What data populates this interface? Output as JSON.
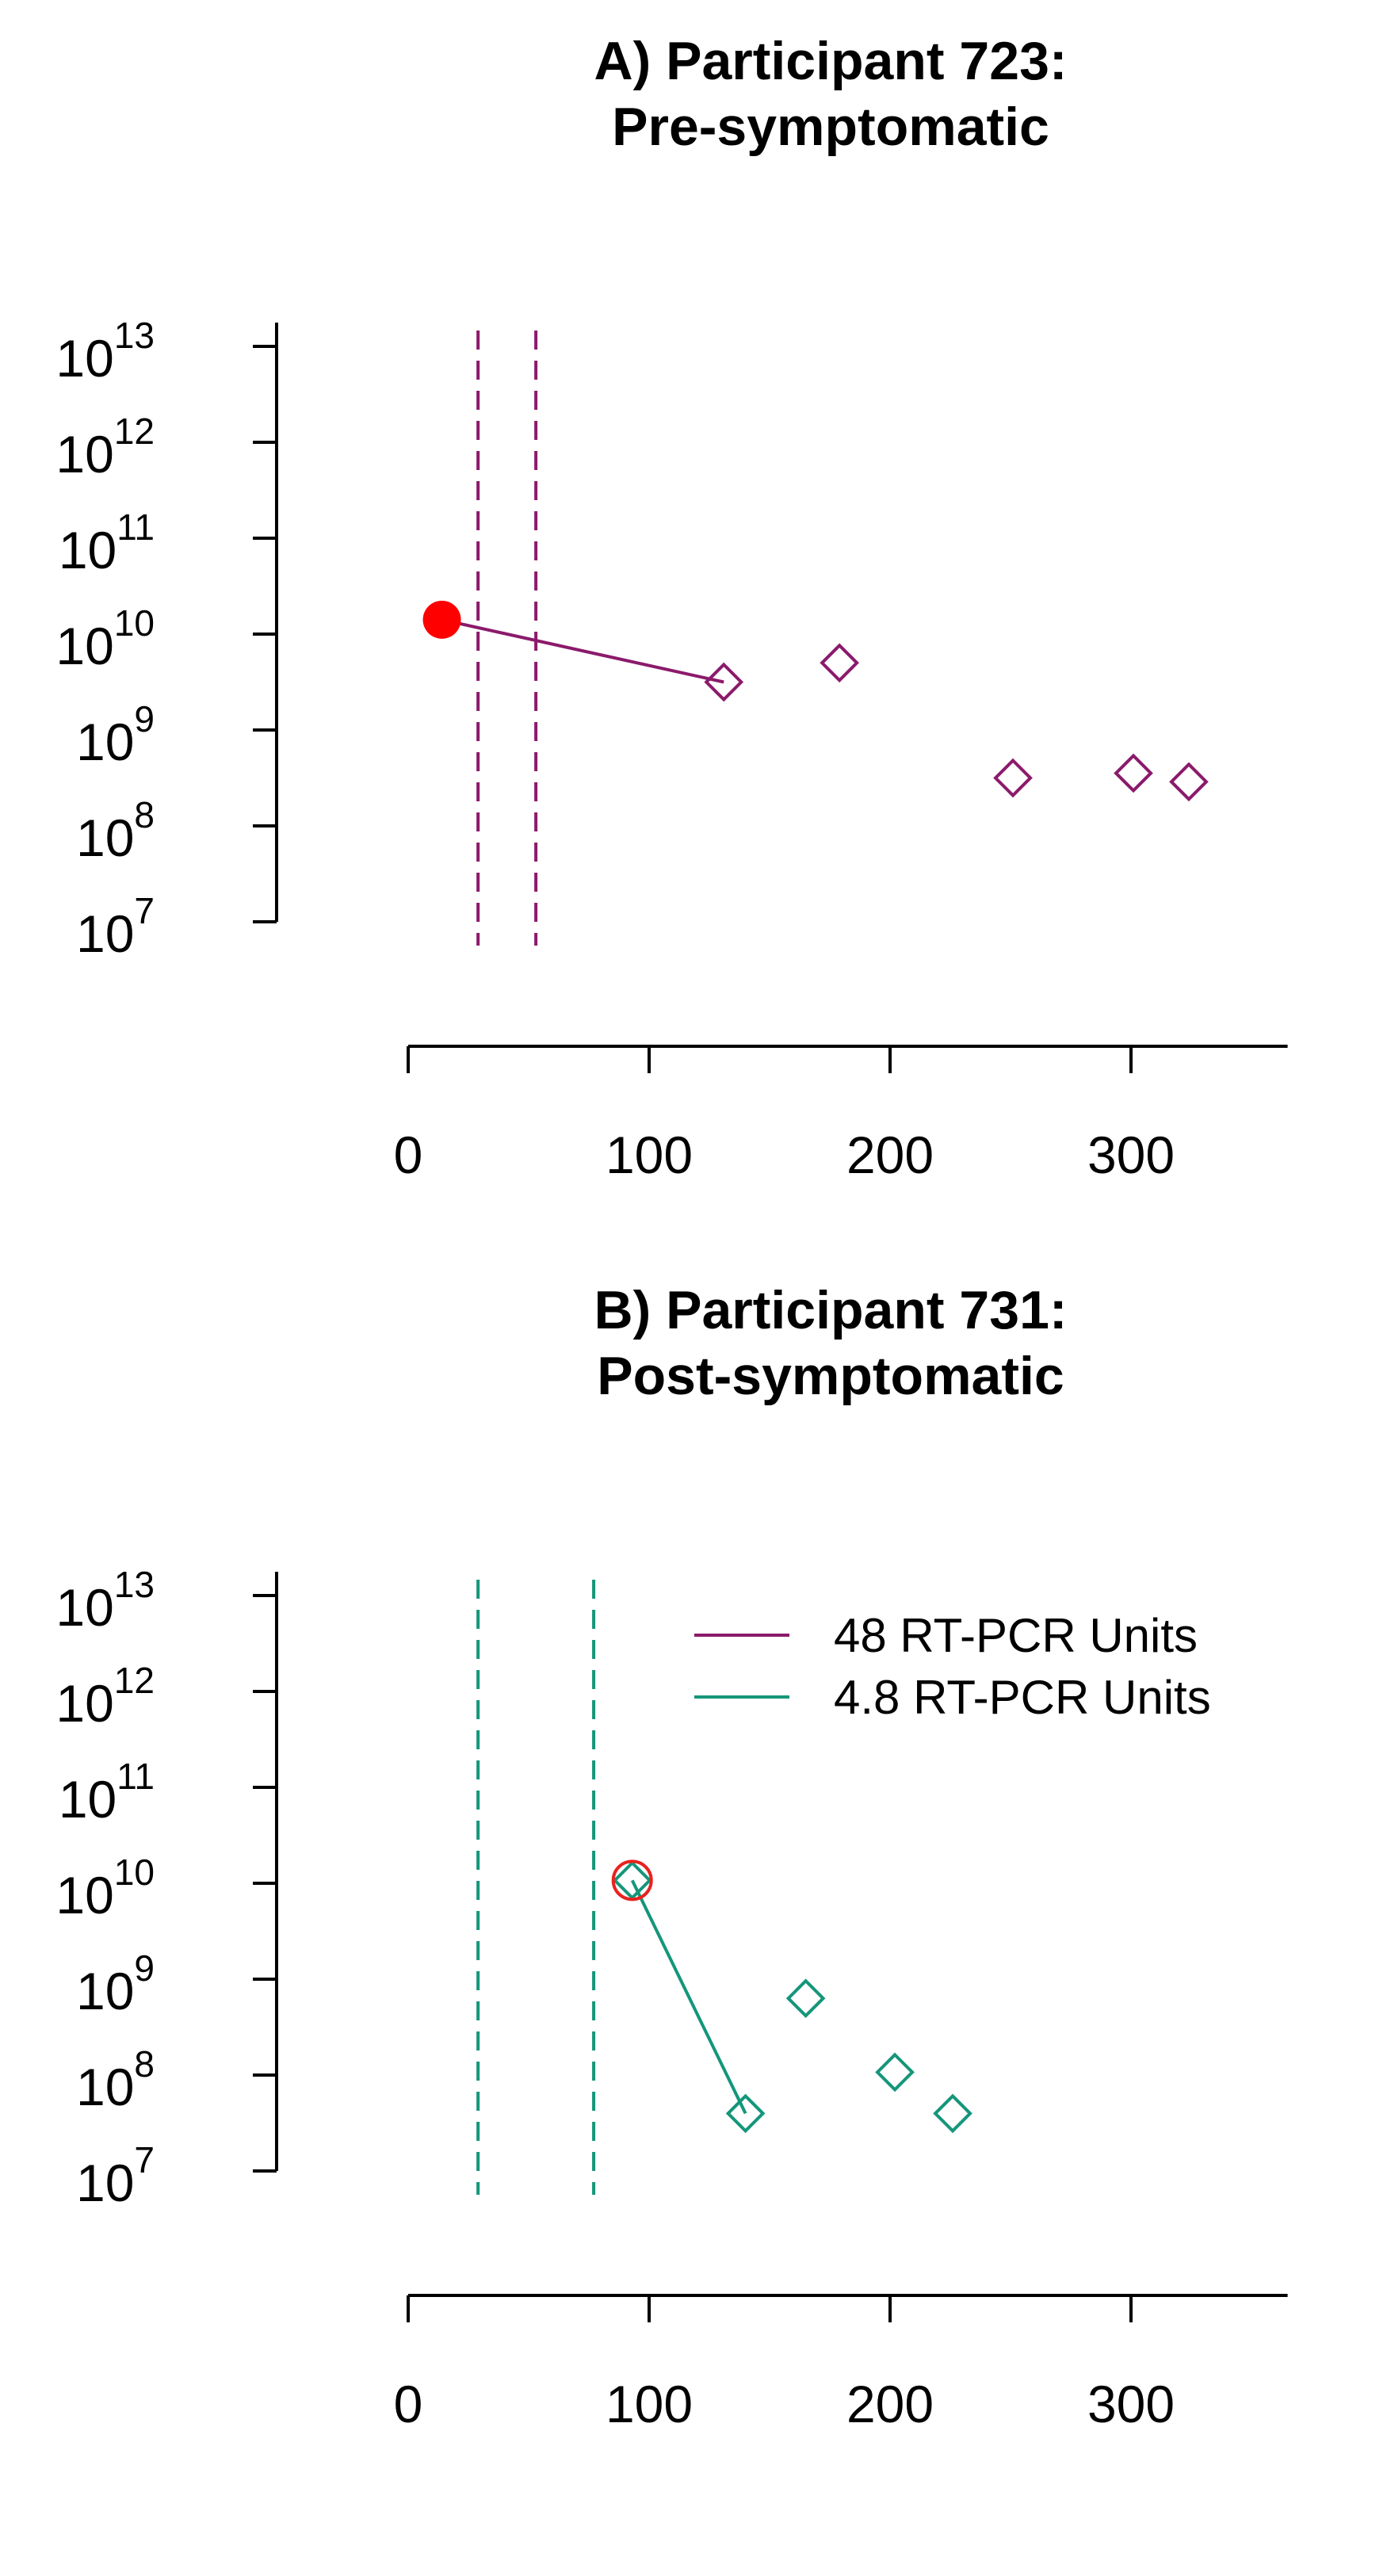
{
  "chart_data": [
    {
      "type": "scatter",
      "title_lines": [
        "A) Participant 723:",
        "Pre-symptomatic"
      ],
      "xlabel": "",
      "ylabel": "",
      "x_ticks": [
        0,
        100,
        200,
        300
      ],
      "xlim": [
        0,
        365
      ],
      "y_scale": "log10",
      "y_tick_base": "10",
      "y_ticks": [
        7,
        8,
        9,
        10,
        11,
        12,
        13
      ],
      "y_tick_exponents": [
        "7",
        "8",
        "9",
        "10",
        "11",
        "12",
        "13"
      ],
      "ylim_log10": [
        7,
        13
      ],
      "color": "#8B1A6B",
      "vlines": [
        29,
        53
      ],
      "peak_marker": {
        "x": 14,
        "log10_y": 10.15,
        "style": "filled-circle",
        "color": "#FF0000"
      },
      "segment": [
        {
          "x": 14,
          "log10_y": 10.15
        },
        {
          "x": 131,
          "log10_y": 9.5
        }
      ],
      "points": [
        {
          "x": 131,
          "log10_y": 9.5
        },
        {
          "x": 179,
          "log10_y": 9.7
        },
        {
          "x": 251,
          "log10_y": 8.5
        },
        {
          "x": 301,
          "log10_y": 8.55
        },
        {
          "x": 324,
          "log10_y": 8.46
        }
      ],
      "grid": false,
      "legend": null
    },
    {
      "type": "scatter",
      "title_lines": [
        "B) Participant 731:",
        "Post-symptomatic"
      ],
      "xlabel": "",
      "ylabel": "",
      "x_ticks": [
        0,
        100,
        200,
        300
      ],
      "xlim": [
        0,
        365
      ],
      "y_scale": "log10",
      "y_tick_base": "10",
      "y_ticks": [
        7,
        8,
        9,
        10,
        11,
        12,
        13
      ],
      "y_tick_exponents": [
        "7",
        "8",
        "9",
        "10",
        "11",
        "12",
        "13"
      ],
      "ylim_log10": [
        7,
        13
      ],
      "color": "#14967A",
      "vlines": [
        29,
        77
      ],
      "peak_marker": {
        "x": 93,
        "log10_y": 10.03,
        "style": "open-circle",
        "color": "#E8221E"
      },
      "segment": [
        {
          "x": 93,
          "log10_y": 10.03
        },
        {
          "x": 140,
          "log10_y": 7.6
        }
      ],
      "points": [
        {
          "x": 93,
          "log10_y": 10.03
        },
        {
          "x": 140,
          "log10_y": 7.6
        },
        {
          "x": 165,
          "log10_y": 8.8
        },
        {
          "x": 202,
          "log10_y": 8.03
        },
        {
          "x": 226,
          "log10_y": 7.6
        }
      ],
      "grid": false,
      "legend": {
        "position": "top-right",
        "entries": [
          {
            "label": "48 RT-PCR Units",
            "color": "#8B1A6B"
          },
          {
            "label": "4.8 RT-PCR Units",
            "color": "#14967A"
          }
        ]
      }
    }
  ]
}
